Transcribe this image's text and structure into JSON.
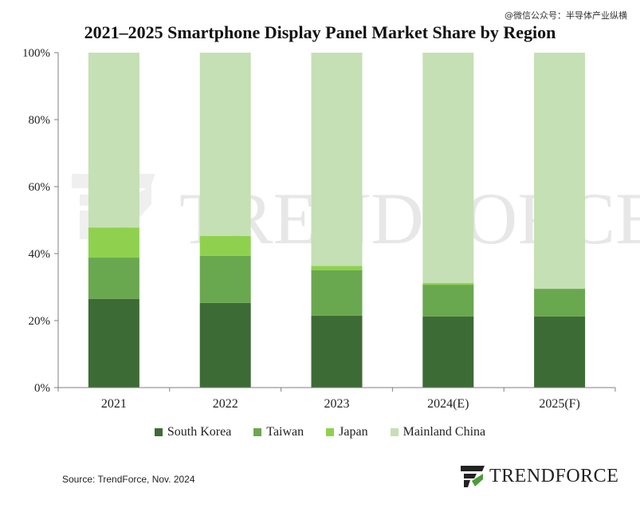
{
  "watermark_top": "@微信公众号：半导体产业纵横",
  "title": "2021–2025 Smartphone Display Panel Market Share by Region",
  "source": "Source: TrendForce, Nov. 2024",
  "logo_text": "TRENDFORCE",
  "background_watermark": "TRENDFORCE",
  "colors": {
    "South Korea": "#3d6b35",
    "Taiwan": "#6aa84f",
    "Japan": "#8fd14f",
    "Mainland China": "#c5e0b4"
  },
  "chart_data": {
    "type": "bar",
    "stacked": true,
    "title": "2021–2025 Smartphone Display Panel Market Share by Region",
    "xlabel": "",
    "ylabel": "",
    "categories": [
      "2021",
      "2022",
      "2023",
      "2024(E)",
      "2025(F)"
    ],
    "ylim": [
      0,
      100
    ],
    "yticks": [
      "0%",
      "20%",
      "40%",
      "60%",
      "80%",
      "100%"
    ],
    "series": [
      {
        "name": "South Korea",
        "values": [
          26.5,
          25.3,
          21.5,
          21.2,
          21.2
        ]
      },
      {
        "name": "Taiwan",
        "values": [
          12.3,
          14.0,
          13.5,
          9.5,
          8.3
        ]
      },
      {
        "name": "Japan",
        "values": [
          9.0,
          6.0,
          1.3,
          0.5,
          0
        ]
      },
      {
        "name": "Mainland China",
        "values": [
          52.2,
          54.7,
          63.7,
          68.8,
          70.5
        ]
      }
    ],
    "grid": false,
    "legend_position": "bottom"
  }
}
